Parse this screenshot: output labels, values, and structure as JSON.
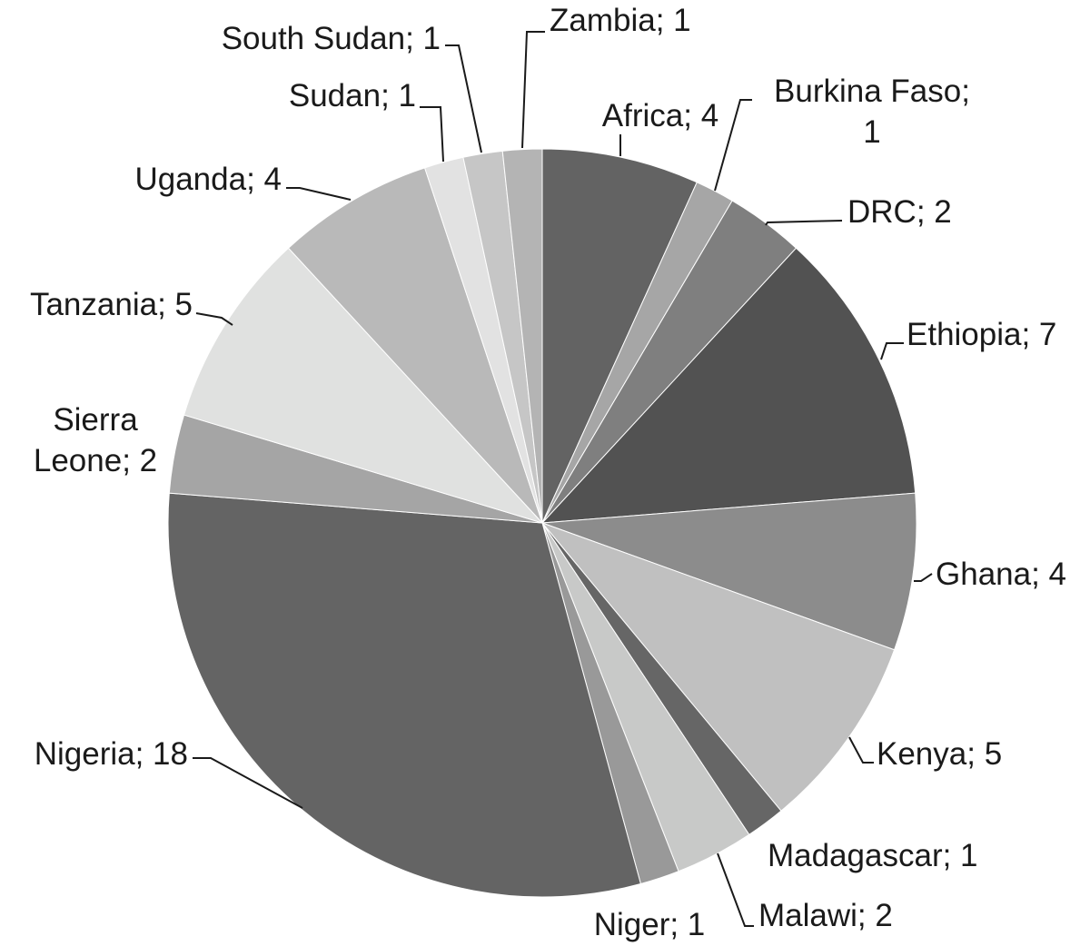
{
  "chart_data": {
    "type": "pie",
    "labels": [
      "Africa; 4",
      "Burkina Faso; 1",
      "DRC; 2",
      "Ethiopia; 7",
      "Ghana; 4",
      "Kenya; 5",
      "Madagascar; 1",
      "Malawi; 2",
      "Niger; 1",
      "Nigeria; 18",
      "Sierra Leone; 2",
      "Tanzania; 5",
      "Uganda; 4",
      "Sudan; 1",
      "South Sudan; 1",
      "Zambia; 1"
    ],
    "values": [
      4,
      1,
      2,
      7,
      4,
      5,
      1,
      2,
      1,
      18,
      2,
      5,
      4,
      1,
      1,
      1
    ],
    "colors": [
      "#636363",
      "#a6a6a6",
      "#7f7f7f",
      "#525252",
      "#8c8c8c",
      "#c0c0c0",
      "#666666",
      "#c8c9c8",
      "#999999",
      "#646464",
      "#a5a5a5",
      "#e0e1e0",
      "#b9b9b9",
      "#e2e2e2",
      "#c6c6c6",
      "#b4b4b4"
    ]
  }
}
